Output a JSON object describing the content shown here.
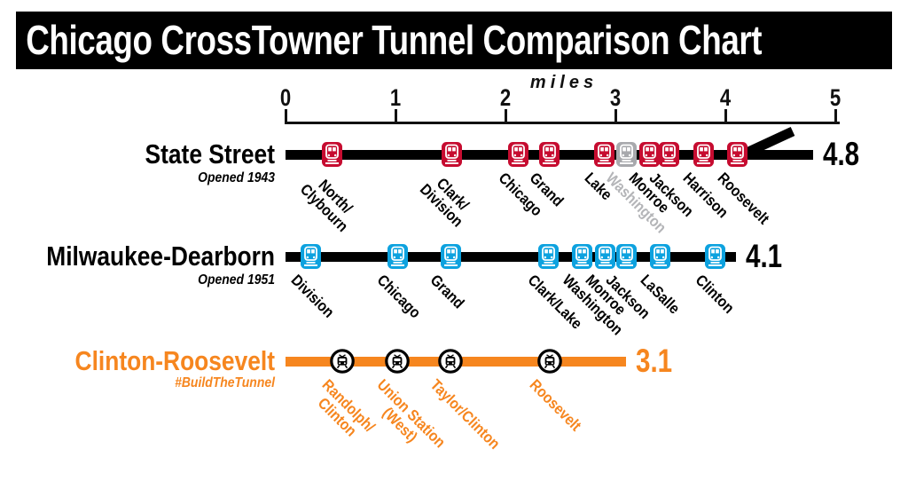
{
  "title": "Chicago CrossTowner Tunnel Comparison Chart",
  "chart_data": {
    "type": "line",
    "title": "Chicago CrossTowner Tunnel Comparison Chart",
    "axis_label": "miles",
    "axis_range": [
      0,
      5
    ],
    "axis_ticks": [
      {
        "label": "0",
        "mile": 0
      },
      {
        "label": "1",
        "mile": 1
      },
      {
        "label": "2",
        "mile": 2
      },
      {
        "label": "3",
        "mile": 3
      },
      {
        "label": "4",
        "mile": 4
      },
      {
        "label": "5",
        "mile": 5
      }
    ],
    "grid": false,
    "closed_station_colors": {
      "marker": "#A8A9AD",
      "label": "#B4B5B8"
    },
    "lines": [
      {
        "name": "State Street",
        "subtitle": "Opened 1943",
        "title_color": "#000000",
        "track_color": "#000000",
        "marker_style": "square",
        "marker_color": "#C60C30",
        "label_color": "#000000",
        "length_mi": 4.8,
        "length_label": "4.8",
        "branch_stub": true,
        "stations": [
          {
            "name": "North/\nClybourn",
            "mile": 0.42
          },
          {
            "name": "Clark/\nDivision",
            "mile": 1.51
          },
          {
            "name": "Chicago",
            "mile": 2.12
          },
          {
            "name": "Grand",
            "mile": 2.4
          },
          {
            "name": "Lake",
            "mile": 2.9
          },
          {
            "name": "Washington",
            "mile": 3.1,
            "closed": true
          },
          {
            "name": "Monroe",
            "mile": 3.31
          },
          {
            "name": "Jackson",
            "mile": 3.49
          },
          {
            "name": "Harrison",
            "mile": 3.8
          },
          {
            "name": "Roosevelt",
            "mile": 4.11
          }
        ]
      },
      {
        "name": "Milwaukee-Dearborn",
        "subtitle": "Opened 1951",
        "title_color": "#000000",
        "track_color": "#000000",
        "marker_style": "square",
        "marker_color": "#0DA2DF",
        "label_color": "#000000",
        "length_mi": 4.1,
        "length_label": "4.1",
        "branch_stub": false,
        "stations": [
          {
            "name": "Division",
            "mile": 0.23
          },
          {
            "name": "Chicago",
            "mile": 1.02
          },
          {
            "name": "Grand",
            "mile": 1.5
          },
          {
            "name": "Clark/Lake",
            "mile": 2.39
          },
          {
            "name": "Washington",
            "mile": 2.7
          },
          {
            "name": "Monroe",
            "mile": 2.91
          },
          {
            "name": "Jackson",
            "mile": 3.1
          },
          {
            "name": "LaSalle",
            "mile": 3.41
          },
          {
            "name": "Clinton",
            "mile": 3.91
          }
        ]
      },
      {
        "name": "Clinton-Roosevelt",
        "subtitle": "#BuildTheTunnel",
        "title_color": "#F6861F",
        "track_color": "#F6861F",
        "marker_style": "circle",
        "marker_color": "#000000",
        "label_color": "#F6861F",
        "length_mi": 3.1,
        "length_label": "3.1",
        "branch_stub": false,
        "stations": [
          {
            "name": "Randolph/\nClinton",
            "mile": 0.52
          },
          {
            "name": "Union Station\n(West)",
            "mile": 1.02
          },
          {
            "name": "Taylor/Clinton",
            "mile": 1.5
          },
          {
            "name": "Roosevelt",
            "mile": 2.4
          }
        ]
      }
    ]
  }
}
